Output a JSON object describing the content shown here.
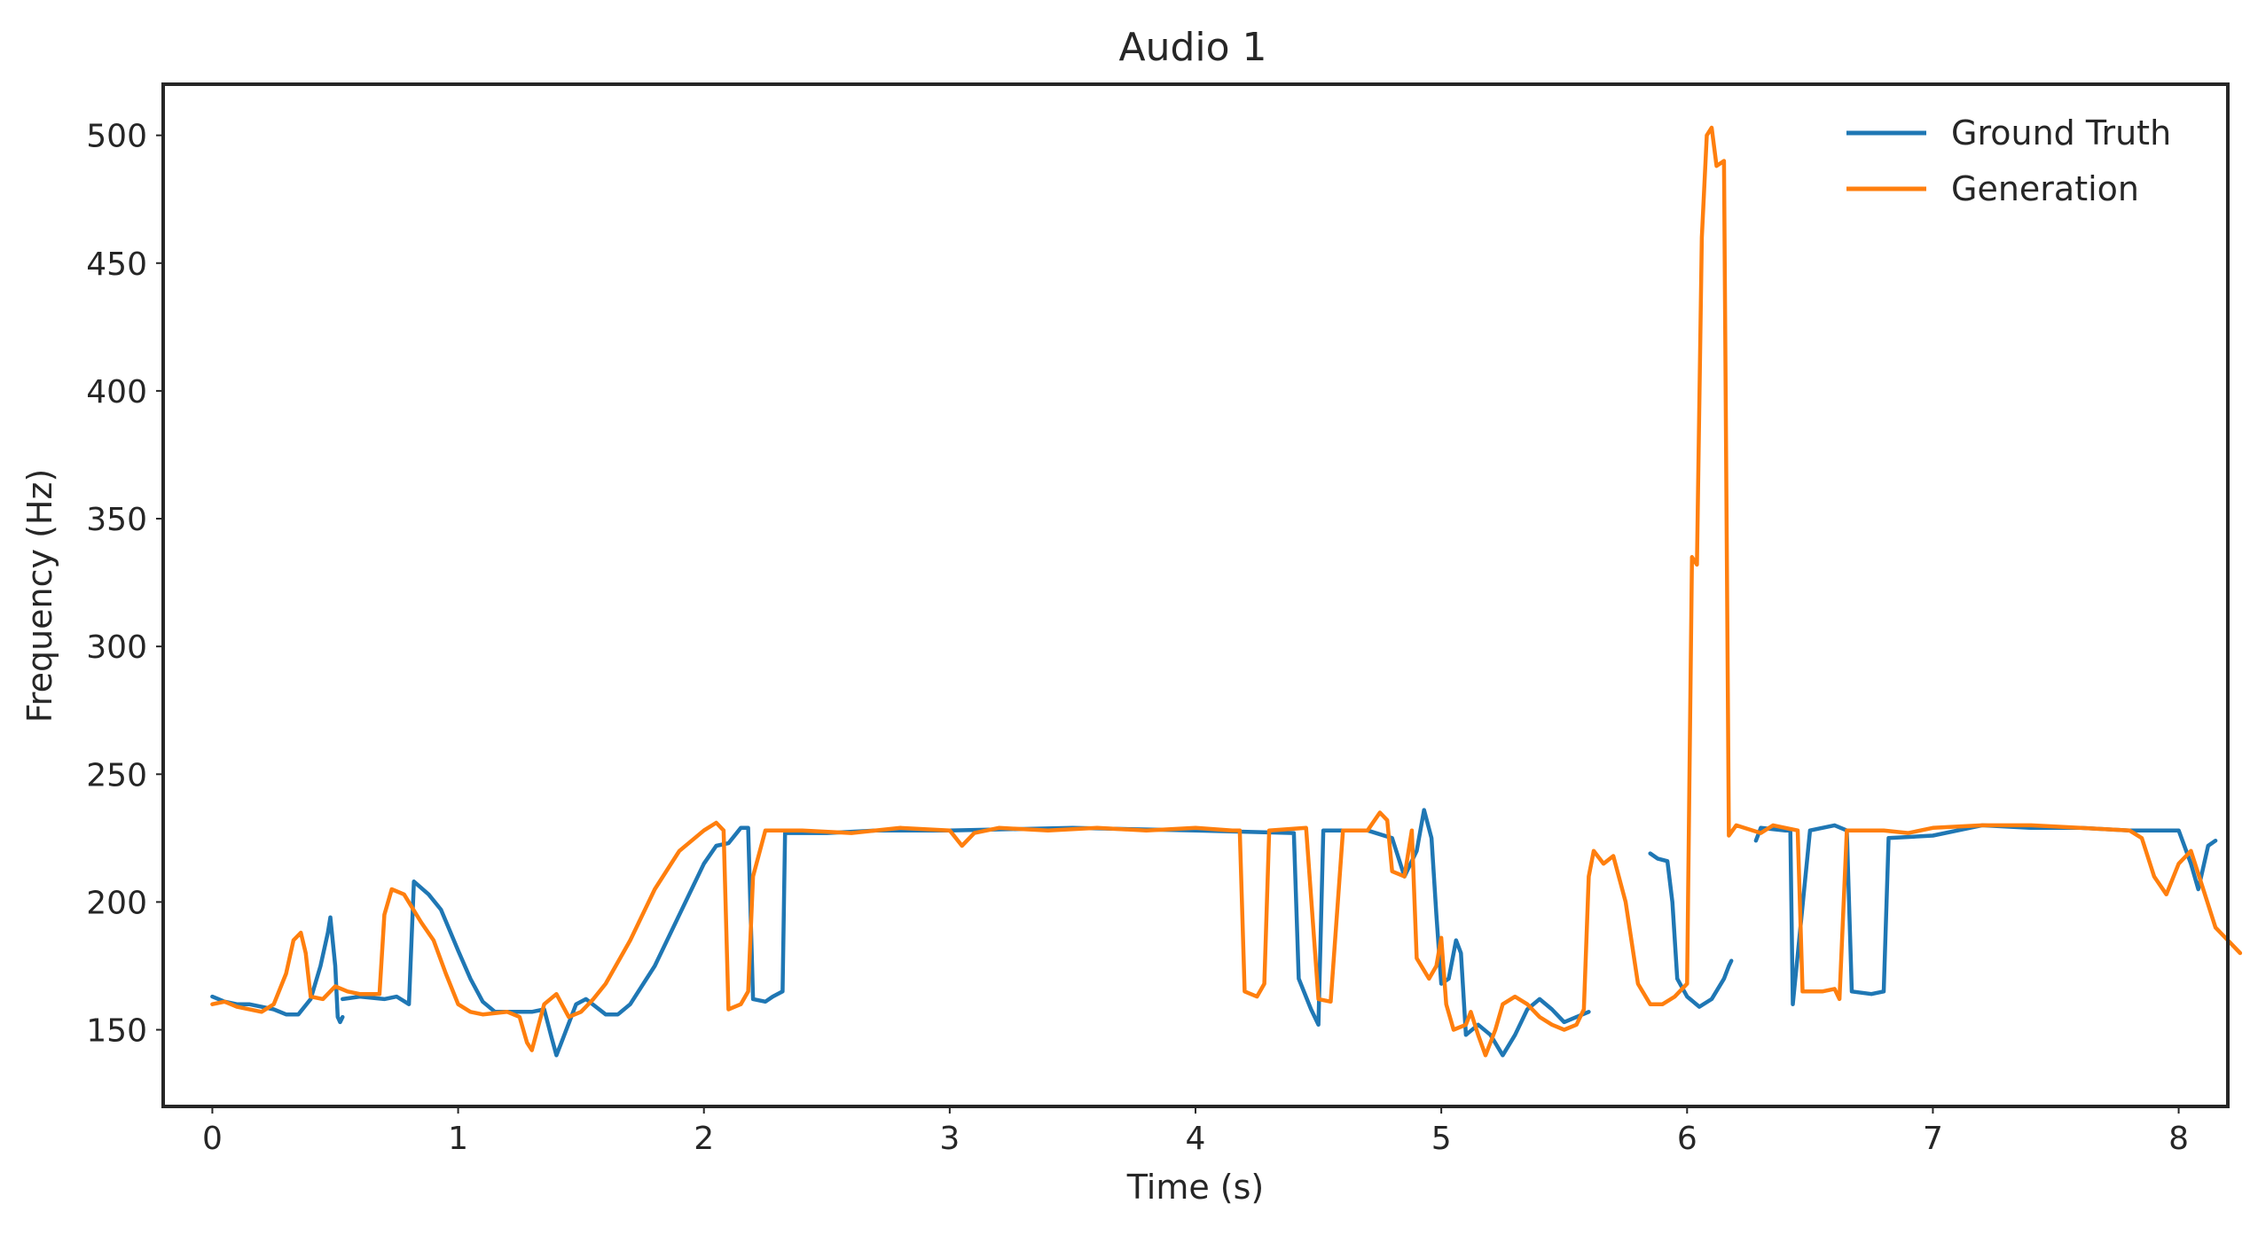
{
  "chart_data": {
    "type": "line",
    "title": "Audio 1",
    "xlabel": "Time (s)",
    "ylabel": "Frequency (Hz)",
    "xlim": [
      -0.2,
      8.2
    ],
    "ylim": [
      120,
      520
    ],
    "xticks": [
      0,
      1,
      2,
      3,
      4,
      5,
      6,
      7,
      8
    ],
    "yticks": [
      150,
      200,
      250,
      300,
      350,
      400,
      450,
      500
    ],
    "grid": false,
    "legend_position": "top-right",
    "series": [
      {
        "name": "Ground Truth",
        "color": "#1f77b4",
        "segments": [
          [
            [
              0.0,
              163
            ],
            [
              0.05,
              161
            ],
            [
              0.1,
              160
            ],
            [
              0.15,
              160
            ],
            [
              0.2,
              159
            ],
            [
              0.25,
              158
            ],
            [
              0.3,
              156
            ],
            [
              0.35,
              156
            ],
            [
              0.4,
              162
            ],
            [
              0.44,
              175
            ],
            [
              0.47,
              188
            ],
            [
              0.48,
              194
            ],
            [
              0.5,
              175
            ],
            [
              0.51,
              155
            ],
            [
              0.52,
              153
            ],
            [
              0.53,
              155
            ]
          ],
          [
            [
              0.53,
              162
            ],
            [
              0.6,
              163
            ],
            [
              0.7,
              162
            ],
            [
              0.75,
              163
            ],
            [
              0.8,
              160
            ],
            [
              0.82,
              208
            ],
            [
              0.88,
              203
            ],
            [
              0.93,
              197
            ],
            [
              1.0,
              181
            ],
            [
              1.05,
              170
            ],
            [
              1.1,
              161
            ],
            [
              1.15,
              157
            ],
            [
              1.2,
              157
            ],
            [
              1.3,
              157
            ],
            [
              1.35,
              158
            ],
            [
              1.38,
              147
            ],
            [
              1.4,
              140
            ],
            [
              1.42,
              145
            ],
            [
              1.48,
              160
            ],
            [
              1.52,
              162
            ],
            [
              1.6,
              156
            ],
            [
              1.65,
              156
            ],
            [
              1.7,
              160
            ],
            [
              1.8,
              175
            ],
            [
              1.9,
              195
            ],
            [
              2.0,
              215
            ],
            [
              2.05,
              222
            ],
            [
              2.1,
              223
            ],
            [
              2.15,
              229
            ],
            [
              2.18,
              229
            ],
            [
              2.2,
              162
            ],
            [
              2.25,
              161
            ],
            [
              2.28,
              163
            ],
            [
              2.32,
              165
            ],
            [
              2.33,
              227
            ],
            [
              2.5,
              227
            ],
            [
              2.7,
              228
            ],
            [
              3.0,
              228
            ],
            [
              3.5,
              229
            ],
            [
              4.0,
              228
            ],
            [
              4.4,
              227
            ],
            [
              4.42,
              170
            ],
            [
              4.47,
              158
            ],
            [
              4.5,
              152
            ],
            [
              4.52,
              228
            ],
            [
              4.7,
              228
            ],
            [
              4.8,
              225
            ],
            [
              4.85,
              210
            ],
            [
              4.9,
              220
            ],
            [
              4.93,
              236
            ],
            [
              4.96,
              225
            ],
            [
              4.98,
              195
            ],
            [
              5.0,
              168
            ],
            [
              5.03,
              170
            ],
            [
              5.06,
              185
            ],
            [
              5.08,
              180
            ],
            [
              5.1,
              148
            ],
            [
              5.15,
              152
            ],
            [
              5.2,
              148
            ],
            [
              5.25,
              140
            ],
            [
              5.3,
              148
            ],
            [
              5.35,
              158
            ],
            [
              5.4,
              162
            ],
            [
              5.45,
              158
            ],
            [
              5.5,
              153
            ],
            [
              5.55,
              155
            ],
            [
              5.6,
              157
            ]
          ]
        ],
        "segments_2": [
          [
            [
              5.85,
              219
            ],
            [
              5.88,
              217
            ],
            [
              5.92,
              216
            ],
            [
              5.94,
              200
            ],
            [
              5.96,
              170
            ],
            [
              6.0,
              163
            ],
            [
              6.05,
              159
            ],
            [
              6.1,
              162
            ],
            [
              6.15,
              170
            ],
            [
              6.17,
              175
            ],
            [
              6.18,
              177
            ]
          ],
          [
            [
              6.28,
              224
            ],
            [
              6.3,
              229
            ],
            [
              6.4,
              228
            ],
            [
              6.42,
              228
            ],
            [
              6.43,
              160
            ],
            [
              6.5,
              228
            ],
            [
              6.6,
              230
            ],
            [
              6.65,
              228
            ],
            [
              6.67,
              165
            ],
            [
              6.75,
              164
            ],
            [
              6.8,
              165
            ],
            [
              6.82,
              225
            ],
            [
              7.0,
              226
            ],
            [
              7.2,
              230
            ],
            [
              7.4,
              229
            ],
            [
              7.6,
              229
            ],
            [
              7.8,
              228
            ],
            [
              8.0,
              228
            ],
            [
              8.05,
              215
            ],
            [
              8.08,
              205
            ],
            [
              8.12,
              222
            ],
            [
              8.15,
              224
            ]
          ]
        ]
      },
      {
        "name": "Generation",
        "color": "#ff7f0e",
        "segments": [
          [
            [
              0.0,
              160
            ],
            [
              0.05,
              161
            ],
            [
              0.1,
              159
            ],
            [
              0.2,
              157
            ],
            [
              0.25,
              160
            ],
            [
              0.3,
              172
            ],
            [
              0.33,
              185
            ],
            [
              0.36,
              188
            ],
            [
              0.38,
              180
            ],
            [
              0.4,
              163
            ],
            [
              0.45,
              162
            ],
            [
              0.5,
              167
            ],
            [
              0.55,
              165
            ],
            [
              0.6,
              164
            ],
            [
              0.68,
              164
            ],
            [
              0.7,
              195
            ],
            [
              0.73,
              205
            ],
            [
              0.78,
              203
            ],
            [
              0.85,
              192
            ],
            [
              0.9,
              185
            ],
            [
              0.95,
              172
            ],
            [
              1.0,
              160
            ],
            [
              1.05,
              157
            ],
            [
              1.1,
              156
            ],
            [
              1.2,
              157
            ],
            [
              1.25,
              155
            ],
            [
              1.28,
              145
            ],
            [
              1.3,
              142
            ],
            [
              1.35,
              160
            ],
            [
              1.4,
              164
            ],
            [
              1.45,
              155
            ],
            [
              1.5,
              157
            ],
            [
              1.55,
              162
            ],
            [
              1.6,
              168
            ],
            [
              1.7,
              185
            ],
            [
              1.8,
              205
            ],
            [
              1.9,
              220
            ],
            [
              2.0,
              228
            ],
            [
              2.05,
              231
            ],
            [
              2.08,
              228
            ],
            [
              2.1,
              158
            ],
            [
              2.15,
              160
            ],
            [
              2.18,
              165
            ],
            [
              2.2,
              210
            ],
            [
              2.25,
              228
            ],
            [
              2.4,
              228
            ],
            [
              2.6,
              227
            ],
            [
              2.8,
              229
            ],
            [
              3.0,
              228
            ],
            [
              3.05,
              222
            ],
            [
              3.1,
              227
            ],
            [
              3.2,
              229
            ],
            [
              3.4,
              228
            ],
            [
              3.6,
              229
            ],
            [
              3.8,
              228
            ],
            [
              4.0,
              229
            ],
            [
              4.15,
              228
            ],
            [
              4.18,
              228
            ],
            [
              4.2,
              165
            ],
            [
              4.25,
              163
            ],
            [
              4.28,
              168
            ],
            [
              4.3,
              228
            ],
            [
              4.45,
              229
            ],
            [
              4.5,
              162
            ],
            [
              4.55,
              161
            ],
            [
              4.6,
              228
            ],
            [
              4.7,
              228
            ],
            [
              4.75,
              235
            ],
            [
              4.78,
              232
            ],
            [
              4.8,
              212
            ],
            [
              4.85,
              210
            ],
            [
              4.88,
              228
            ],
            [
              4.9,
              178
            ],
            [
              4.95,
              170
            ],
            [
              4.98,
              175
            ],
            [
              5.0,
              186
            ],
            [
              5.02,
              160
            ],
            [
              5.05,
              150
            ],
            [
              5.1,
              152
            ],
            [
              5.12,
              157
            ],
            [
              5.15,
              148
            ],
            [
              5.18,
              140
            ],
            [
              5.22,
              150
            ],
            [
              5.25,
              160
            ],
            [
              5.3,
              163
            ],
            [
              5.35,
              160
            ],
            [
              5.4,
              155
            ],
            [
              5.45,
              152
            ],
            [
              5.5,
              150
            ],
            [
              5.55,
              152
            ],
            [
              5.58,
              158
            ],
            [
              5.6,
              210
            ],
            [
              5.62,
              220
            ],
            [
              5.66,
              215
            ],
            [
              5.7,
              218
            ],
            [
              5.75,
              200
            ],
            [
              5.8,
              168
            ],
            [
              5.85,
              160
            ],
            [
              5.9,
              160
            ],
            [
              5.95,
              163
            ],
            [
              6.0,
              168
            ],
            [
              6.02,
              335
            ],
            [
              6.04,
              332
            ],
            [
              6.06,
              460
            ],
            [
              6.08,
              500
            ],
            [
              6.1,
              503
            ],
            [
              6.12,
              488
            ],
            [
              6.15,
              490
            ],
            [
              6.17,
              226
            ],
            [
              6.2,
              230
            ],
            [
              6.3,
              227
            ],
            [
              6.35,
              230
            ],
            [
              6.4,
              229
            ],
            [
              6.45,
              228
            ],
            [
              6.47,
              165
            ],
            [
              6.55,
              165
            ],
            [
              6.6,
              166
            ],
            [
              6.62,
              162
            ],
            [
              6.65,
              228
            ],
            [
              6.8,
              228
            ],
            [
              6.9,
              227
            ],
            [
              7.0,
              229
            ],
            [
              7.2,
              230
            ],
            [
              7.4,
              230
            ],
            [
              7.6,
              229
            ],
            [
              7.8,
              228
            ],
            [
              7.85,
              225
            ],
            [
              7.9,
              210
            ],
            [
              7.95,
              203
            ],
            [
              8.0,
              215
            ],
            [
              8.05,
              220
            ],
            [
              8.1,
              205
            ],
            [
              8.15,
              190
            ],
            [
              8.2,
              185
            ],
            [
              8.25,
              180
            ]
          ]
        ]
      }
    ]
  }
}
